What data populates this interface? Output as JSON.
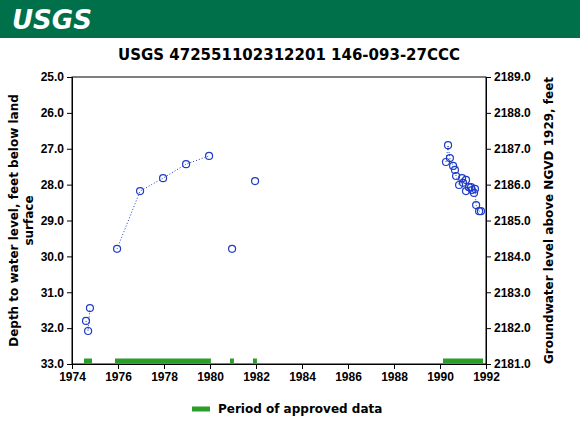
{
  "header": {
    "logo": "USGS"
  },
  "chart_data": {
    "type": "line",
    "title": "USGS 472551102312201 146-093-27CCC",
    "ylabel": [
      "Depth to water level, feet below land",
      "surface"
    ],
    "y2label": "Groundwater level above NGVD 1929, feet",
    "x": [
      1974.61,
      1974.7,
      1974.78,
      null,
      1975.96,
      1976.96,
      1977.96,
      1978.96,
      1979.96,
      null,
      1980.96,
      null,
      1981.96,
      null,
      1990.26,
      1990.35,
      1990.43,
      1990.57,
      1990.65,
      1990.7,
      1990.83,
      1990.96,
      1991.0,
      1991.13,
      1991.13,
      1991.26,
      1991.35,
      1991.39,
      1991.48,
      1991.52,
      1991.57,
      1991.7,
      1991.78
    ],
    "values": [
      31.8,
      32.08,
      31.44,
      null,
      29.79,
      28.18,
      27.82,
      27.43,
      27.2,
      null,
      29.79,
      null,
      27.9,
      null,
      27.37,
      26.9,
      27.26,
      27.48,
      27.59,
      27.76,
      28.01,
      27.82,
      27.95,
      27.87,
      28.18,
      28.07,
      28.07,
      28.15,
      28.23,
      28.12,
      28.57,
      28.74,
      28.74
    ],
    "color": "#1e3cc8",
    "marker": "circle-open",
    "line_style": "dotted",
    "xlim": [
      1974,
      1992
    ],
    "xticks": [
      1974,
      1976,
      1978,
      1980,
      1982,
      1984,
      1986,
      1988,
      1990,
      1992
    ],
    "ylim": [
      33,
      25
    ],
    "yticks": [
      {
        "value": 25,
        "label": "25.0"
      },
      {
        "value": 26,
        "label": "26.0"
      },
      {
        "value": 27,
        "label": "27.0"
      },
      {
        "value": 28,
        "label": "28.0"
      },
      {
        "value": 29,
        "label": "29.0"
      },
      {
        "value": 30,
        "label": "30.0"
      },
      {
        "value": 31,
        "label": "31.0"
      },
      {
        "value": 32,
        "label": "32.0"
      },
      {
        "value": 33,
        "label": "33.0"
      }
    ],
    "y2lim": [
      2181,
      2189
    ],
    "y2ticks": [
      {
        "value": 2189,
        "label": "2189.0"
      },
      {
        "value": 2188,
        "label": "2188.0"
      },
      {
        "value": 2187,
        "label": "2187.0"
      },
      {
        "value": 2186,
        "label": "2186.0"
      },
      {
        "value": 2185,
        "label": "2185.0"
      },
      {
        "value": 2184,
        "label": "2184.0"
      },
      {
        "value": 2183,
        "label": "2183.0"
      },
      {
        "value": 2182,
        "label": "2182.0"
      },
      {
        "value": 2181,
        "label": "2181.0"
      }
    ],
    "approved_periods": {
      "name": "Period of approved data",
      "color": "#2a9d2a",
      "start": [
        1974.52,
        1975.87,
        1980.87,
        1981.87,
        1990.13
      ],
      "end": [
        1974.87,
        1980.04,
        1981.04,
        1982.04,
        1991.87
      ]
    },
    "legend": "bottom"
  }
}
